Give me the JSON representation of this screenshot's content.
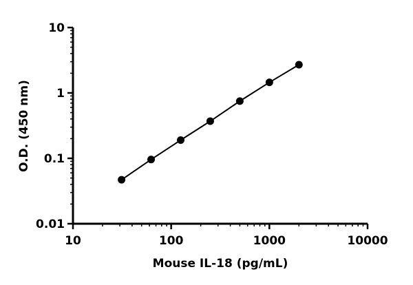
{
  "chart_data": {
    "type": "scatter",
    "title": "",
    "xlabel": "Mouse IL-18 (pg/mL)",
    "ylabel": "O.D. (450 nm)",
    "xscale": "log",
    "yscale": "log",
    "xlim": [
      10,
      10000
    ],
    "ylim": [
      0.01,
      10
    ],
    "xticks": [
      "10",
      "100",
      "1000",
      "10000"
    ],
    "yticks": [
      "0.01",
      "0.1",
      "1",
      "10"
    ],
    "grid": false,
    "legend": "none",
    "fit_line": true,
    "color": "#000000",
    "series": [
      {
        "x": [
          31.25,
          62.5,
          125,
          250,
          500,
          1000,
          2000
        ],
        "y": [
          0.047,
          0.096,
          0.19,
          0.37,
          0.75,
          1.45,
          2.7
        ]
      }
    ]
  }
}
